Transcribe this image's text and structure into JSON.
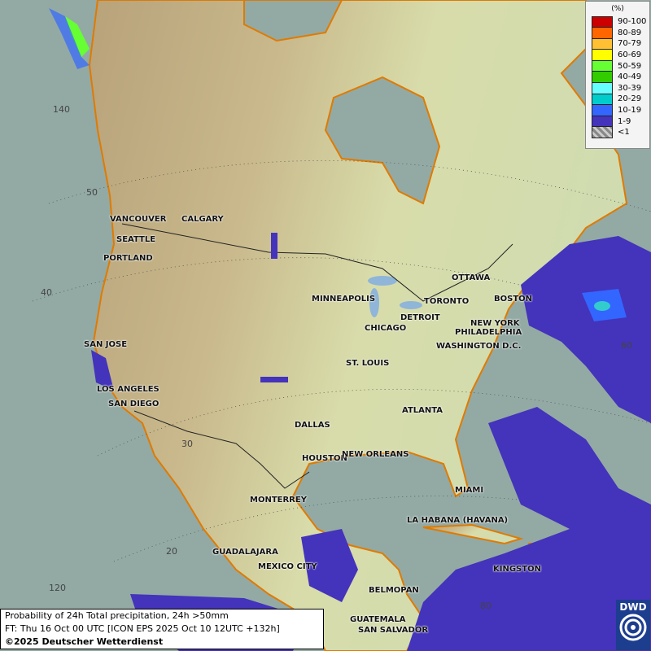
{
  "legend": {
    "unit": "(%)",
    "items": [
      {
        "label": "90-100",
        "color": "#cc0000"
      },
      {
        "label": "80-89",
        "color": "#ff6600"
      },
      {
        "label": "70-79",
        "color": "#ffc133"
      },
      {
        "label": "60-69",
        "color": "#ffff00"
      },
      {
        "label": "50-59",
        "color": "#66ff33"
      },
      {
        "label": "40-49",
        "color": "#33cc00"
      },
      {
        "label": "30-39",
        "color": "#66ffff"
      },
      {
        "label": "20-29",
        "color": "#00cccc"
      },
      {
        "label": "10-19",
        "color": "#3366ff"
      },
      {
        "label": "1-9",
        "color": "#4433bb"
      },
      {
        "label": "<1",
        "color": "#aaaaaa"
      }
    ]
  },
  "cities": [
    "VANCOUVER",
    "CALGARY",
    "SEATTLE",
    "PORTLAND",
    "MINNEAPOLIS",
    "OTTAWA",
    "TORONTO",
    "BOSTON",
    "DETROIT",
    "NEW YORK",
    "CHICAGO",
    "PHILADELPHIA",
    "SAN JOSE",
    "WASHINGTON D.C.",
    "ST. LOUIS",
    "LOS ANGELES",
    "SAN DIEGO",
    "ATLANTA",
    "DALLAS",
    "HOUSTON",
    "NEW ORLEANS",
    "MIAMI",
    "MONTERREY",
    "LA HABANA (HAVANA)",
    "GUADALAJARA",
    "MEXICO CITY",
    "KINGSTON",
    "BELMOPAN",
    "GUATEMALA",
    "SAN SALVADOR"
  ],
  "gridlabels": [
    "140",
    "50",
    "40",
    "30",
    "20",
    "120",
    "80",
    "60"
  ],
  "caption": {
    "line1": "Probability of 24h Total precipitation, 24h >50mm",
    "line2": "FT: Thu 16 Oct 00 UTC [ICON EPS 2025 Oct 10 12UTC +132h]",
    "line3": "©2025 Deutscher Wetterdienst"
  },
  "logo": "DWD"
}
